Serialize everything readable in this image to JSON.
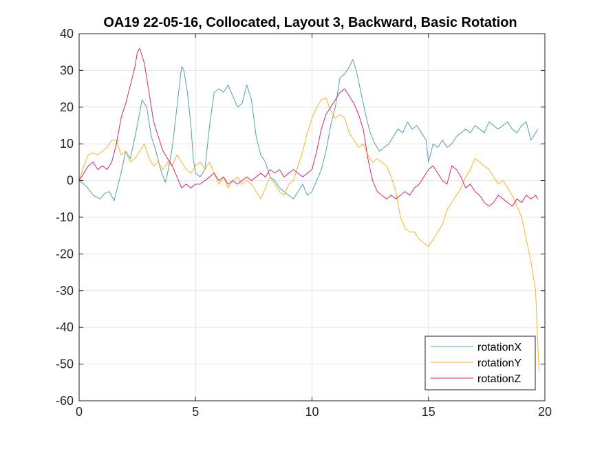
{
  "chart_data": {
    "type": "line",
    "title": "OA19 22-05-16, Collocated, Layout 3, Backward, Basic Rotation",
    "xlabel": "",
    "ylabel": "",
    "xlim": [
      0,
      20
    ],
    "ylim": [
      -60,
      40
    ],
    "xticks": [
      0,
      5,
      10,
      15,
      20
    ],
    "yticks": [
      -60,
      -50,
      -40,
      -30,
      -20,
      -10,
      0,
      10,
      20,
      30,
      40
    ],
    "grid": true,
    "legend_position": "bottom-right",
    "series": [
      {
        "name": "rotationX",
        "color": "#4fa0b4",
        "x": [
          0,
          0.3,
          0.6,
          0.9,
          1.1,
          1.3,
          1.5,
          1.6,
          1.8,
          2.0,
          2.2,
          2.5,
          2.7,
          2.9,
          3.1,
          3.3,
          3.5,
          3.7,
          3.8,
          4.0,
          4.2,
          4.4,
          4.5,
          4.65,
          4.8,
          4.9,
          5.0,
          5.2,
          5.4,
          5.6,
          5.8,
          6.0,
          6.2,
          6.4,
          6.6,
          6.8,
          7.0,
          7.2,
          7.4,
          7.6,
          7.8,
          8.0,
          8.2,
          8.4,
          8.6,
          8.8,
          9.0,
          9.2,
          9.4,
          9.6,
          9.8,
          10.0,
          10.2,
          10.4,
          10.6,
          10.8,
          11.0,
          11.2,
          11.4,
          11.6,
          11.75,
          11.9,
          12.1,
          12.3,
          12.5,
          12.7,
          12.9,
          13.1,
          13.3,
          13.5,
          13.7,
          13.9,
          14.1,
          14.3,
          14.5,
          14.7,
          14.9,
          15.0,
          15.2,
          15.4,
          15.6,
          15.8,
          16.0,
          16.2,
          16.4,
          16.6,
          16.8,
          17.0,
          17.2,
          17.4,
          17.6,
          17.8,
          18.0,
          18.2,
          18.4,
          18.6,
          18.8,
          19.0,
          19.2,
          19.4,
          19.6,
          19.7
        ],
        "y": [
          0,
          -1.5,
          -4,
          -5,
          -3.5,
          -3,
          -5.5,
          -3,
          2,
          8,
          6,
          15,
          22,
          20,
          12,
          8,
          3,
          -0.5,
          2,
          9,
          20,
          31,
          30,
          24,
          15,
          6,
          2,
          1,
          3,
          15,
          24,
          25,
          24,
          26,
          23,
          20,
          21,
          26,
          22,
          12,
          7,
          5,
          1,
          0,
          -2,
          -3,
          -4,
          -5,
          -3,
          -1,
          -4,
          -3,
          0,
          3,
          8,
          15,
          20,
          28,
          29,
          31,
          33,
          30,
          24,
          18,
          13,
          10,
          8,
          9,
          10,
          12,
          14,
          13,
          16,
          14,
          15,
          13,
          11,
          5,
          10,
          9,
          11,
          9,
          10,
          12,
          13,
          14,
          13,
          15,
          14,
          13,
          16,
          15,
          14,
          15,
          16,
          14,
          13,
          15,
          16,
          11,
          13,
          14
        ]
      },
      {
        "name": "rotationY",
        "color": "#f2b526",
        "x": [
          0,
          0.2,
          0.4,
          0.6,
          0.8,
          1.0,
          1.2,
          1.4,
          1.6,
          1.8,
          2.0,
          2.2,
          2.4,
          2.6,
          2.8,
          3.0,
          3.2,
          3.4,
          3.6,
          3.8,
          4.0,
          4.2,
          4.4,
          4.6,
          4.8,
          5.0,
          5.2,
          5.4,
          5.6,
          5.8,
          6.0,
          6.2,
          6.4,
          6.6,
          6.8,
          7.0,
          7.2,
          7.4,
          7.6,
          7.8,
          8.0,
          8.2,
          8.4,
          8.6,
          8.8,
          9.0,
          9.2,
          9.4,
          9.6,
          9.8,
          10.0,
          10.2,
          10.4,
          10.6,
          10.8,
          11.0,
          11.2,
          11.4,
          11.6,
          11.8,
          12.0,
          12.2,
          12.4,
          12.6,
          12.8,
          13.0,
          13.2,
          13.4,
          13.6,
          13.8,
          14.0,
          14.2,
          14.4,
          14.6,
          14.8,
          15.0,
          15.2,
          15.4,
          15.6,
          15.8,
          16.0,
          16.2,
          16.4,
          16.6,
          16.8,
          17.0,
          17.2,
          17.4,
          17.6,
          17.8,
          18.0,
          18.2,
          18.4,
          18.6,
          18.8,
          19.0,
          19.2,
          19.4,
          19.6,
          19.75
        ],
        "y": [
          0,
          4,
          7,
          7.5,
          7,
          8,
          9,
          11,
          11,
          7,
          8,
          5,
          6,
          8,
          10,
          6,
          4,
          5,
          3,
          5,
          4,
          7,
          5,
          3,
          2,
          4,
          5,
          3,
          5,
          2,
          -1,
          1,
          -2,
          0,
          1,
          -1,
          0,
          -1,
          -3,
          -5,
          -2,
          1,
          -1,
          -3,
          -4,
          -1,
          0,
          4,
          8,
          13,
          17,
          20,
          22,
          22.5,
          19,
          17,
          18,
          17,
          13,
          11,
          9,
          10,
          7,
          5,
          6,
          5,
          4,
          1,
          -3,
          -10,
          -13,
          -14,
          -14,
          -16,
          -17,
          -18,
          -16,
          -14,
          -12,
          -8,
          -6,
          -4,
          -2,
          1,
          3,
          6,
          5,
          4,
          3,
          1,
          -1,
          0,
          -2,
          -4,
          -7,
          -10,
          -16,
          -22,
          -30,
          -52
        ]
      },
      {
        "name": "rotationZ",
        "color": "#d6246b",
        "x": [
          0,
          0.2,
          0.4,
          0.6,
          0.8,
          1.0,
          1.2,
          1.4,
          1.6,
          1.8,
          2.0,
          2.2,
          2.4,
          2.5,
          2.6,
          2.7,
          2.8,
          3.0,
          3.2,
          3.4,
          3.6,
          3.8,
          4.0,
          4.2,
          4.4,
          4.6,
          4.8,
          5.0,
          5.2,
          5.4,
          5.6,
          5.8,
          6.0,
          6.2,
          6.4,
          6.6,
          6.8,
          7.0,
          7.2,
          7.4,
          7.6,
          7.8,
          8.0,
          8.2,
          8.4,
          8.6,
          8.8,
          9.0,
          9.2,
          9.4,
          9.6,
          9.8,
          10.0,
          10.2,
          10.4,
          10.6,
          10.8,
          11.0,
          11.2,
          11.4,
          11.6,
          11.8,
          12.0,
          12.2,
          12.4,
          12.6,
          12.8,
          13.0,
          13.2,
          13.4,
          13.6,
          13.8,
          14.0,
          14.2,
          14.4,
          14.6,
          14.8,
          15.0,
          15.2,
          15.4,
          15.6,
          15.8,
          16.0,
          16.2,
          16.4,
          16.6,
          16.8,
          17.0,
          17.2,
          17.4,
          17.6,
          17.8,
          18.0,
          18.2,
          18.4,
          18.6,
          18.8,
          19.0,
          19.2,
          19.4,
          19.6,
          19.7
        ],
        "y": [
          0,
          2,
          4,
          5,
          3,
          4,
          3,
          5,
          10,
          17,
          21,
          26,
          31,
          35,
          36,
          34,
          32,
          24,
          16,
          12,
          8,
          6,
          4,
          1,
          -2,
          -1,
          -2,
          -1,
          -1,
          0,
          1,
          2,
          0,
          1,
          -1,
          0,
          -1,
          0,
          1,
          0,
          1,
          2,
          1,
          3,
          2,
          3,
          1,
          2,
          3,
          2,
          1,
          2,
          3,
          8,
          14,
          18,
          20,
          22,
          24,
          25,
          23,
          21,
          18,
          14,
          6,
          0,
          -3,
          -4,
          -5,
          -4,
          -5,
          -4,
          -3,
          -4,
          -2,
          -1,
          1,
          3,
          4,
          2,
          0,
          -1,
          4,
          3,
          1,
          -2,
          -1,
          -3,
          -4,
          -6,
          -7,
          -6,
          -4,
          -5,
          -6,
          -7,
          -5,
          -6,
          -4,
          -5,
          -4,
          -5
        ]
      }
    ]
  }
}
